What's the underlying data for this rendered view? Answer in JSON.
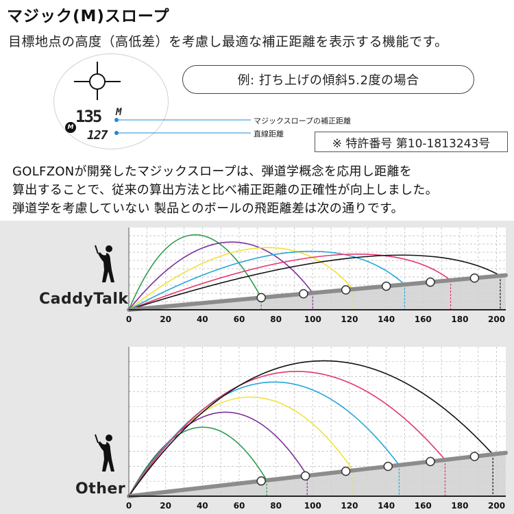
{
  "header": {
    "title": "マジック(M)スロープ",
    "description": "目標地点の高度（高低差）を考慮し最適な補正距離を表示する機能です。",
    "example_label": "例: 打ち上げの傾斜5.2度の場合",
    "patent": "※ 特許番号 第10-1813243号"
  },
  "rangefinder": {
    "corrected_value": "135",
    "corrected_unit": "M",
    "straight_value": "127",
    "mode_badge": "M",
    "corrected_label": "マジックスロープの補正距離",
    "straight_label": "直線距離"
  },
  "paragraph": {
    "line1": "GOLFZONが開発したマジックスロープは、弾道学概念を応用し距離を",
    "line2": "算出することで、従来の算出方法と比べ補正距離の正確性が向上しました。",
    "line3": "弾道学を考慮していない 製品とのボールの飛距離差は次の通りです。"
  },
  "colors": {
    "green": "#2e9a4d",
    "purple": "#7b2f9a",
    "yellow": "#f0e23a",
    "cyan": "#22a7d8",
    "pink": "#e5346e",
    "black": "#111111",
    "slope": "#8c8c8c",
    "panel_bg": "#e7e7e7",
    "plot_bg": "#ffffff"
  },
  "icons": {
    "golfer": "golfer-icon",
    "crosshair": "crosshair-icon"
  },
  "chart_data": [
    {
      "type": "line",
      "panel": "CaddyTalk",
      "label": "CaddyTalk",
      "x_ticks": [
        "0",
        "20",
        "40",
        "60",
        "80",
        "100",
        "120",
        "140",
        "160",
        "180",
        "200"
      ],
      "xlim": [
        0,
        205
      ],
      "ylim": [
        0,
        10
      ],
      "slope_start_y": 0.0,
      "slope_end_y": 4.2,
      "series": [
        {
          "color": "green",
          "x0": 0,
          "apex_x": 33,
          "apex_y": 9.1,
          "land_x": 72
        },
        {
          "color": "purple",
          "x0": 0,
          "apex_x": 55,
          "apex_y": 8.2,
          "land_x": 100
        },
        {
          "color": "yellow",
          "x0": 0,
          "apex_x": 78,
          "apex_y": 7.5,
          "land_x": 122
        },
        {
          "color": "cyan",
          "x0": 0,
          "apex_x": 103,
          "apex_y": 7.0,
          "land_x": 150
        },
        {
          "color": "pink",
          "x0": 0,
          "apex_x": 130,
          "apex_y": 6.6,
          "land_x": 175
        },
        {
          "color": "black",
          "x0": 0,
          "apex_x": 150,
          "apex_y": 6.4,
          "land_x": 202
        }
      ],
      "markers_x": [
        72,
        95,
        118,
        140,
        164,
        188
      ],
      "markers_on": "slope"
    },
    {
      "type": "line",
      "panel": "Other",
      "label": "Other",
      "x_ticks": [
        "0",
        "20",
        "40",
        "60",
        "80",
        "100",
        "120",
        "140",
        "160",
        "180",
        "200"
      ],
      "xlim": [
        0,
        205
      ],
      "ylim": [
        0,
        10
      ],
      "slope_start_y": 0.0,
      "slope_end_y": 2.9,
      "series": [
        {
          "color": "green",
          "x0": 0,
          "apex_x": 38,
          "apex_y": 4.6,
          "land_x": 75
        },
        {
          "color": "purple",
          "x0": 0,
          "apex_x": 50,
          "apex_y": 5.6,
          "land_x": 97
        },
        {
          "color": "yellow",
          "x0": 0,
          "apex_x": 62,
          "apex_y": 6.6,
          "land_x": 122
        },
        {
          "color": "cyan",
          "x0": 0,
          "apex_x": 73,
          "apex_y": 7.6,
          "land_x": 147
        },
        {
          "color": "pink",
          "x0": 0,
          "apex_x": 82,
          "apex_y": 8.3,
          "land_x": 172
        },
        {
          "color": "black",
          "x0": 0,
          "apex_x": 95,
          "apex_y": 9.0,
          "land_x": 198
        }
      ],
      "markers_x": [
        72,
        96,
        118,
        141,
        164,
        188
      ],
      "markers_on": "slope"
    }
  ]
}
